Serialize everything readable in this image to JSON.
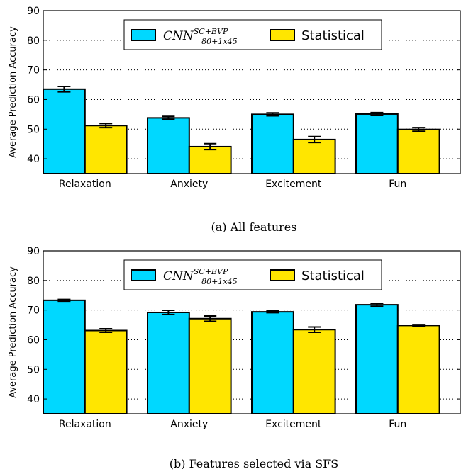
{
  "colors": {
    "cnn": "#00d8ff",
    "statistical": "#ffe600",
    "edge": "#000000"
  },
  "legend": {
    "cnn": {
      "base": "CNN",
      "sup": "SC+BVP",
      "sub": "80+1x45"
    },
    "statistical": "Statistical"
  },
  "chart_data": [
    {
      "type": "bar",
      "caption": "(a)  All features",
      "ylabel": "Average Prediction Accuracy",
      "ylim": [
        35,
        90
      ],
      "yticks": [
        40,
        50,
        60,
        70,
        80,
        90
      ],
      "grid": true,
      "legend_position": "top-center",
      "categories": [
        "Relaxation",
        "Anxiety",
        "Excitement",
        "Fun"
      ],
      "series": [
        {
          "key": "cnn",
          "values": [
            63.5,
            53.8,
            55.0,
            55.1
          ],
          "errors": [
            0.9,
            0.5,
            0.5,
            0.5
          ]
        },
        {
          "key": "statistical",
          "values": [
            51.2,
            44.1,
            46.5,
            49.9
          ],
          "errors": [
            0.7,
            1.0,
            1.0,
            0.6
          ]
        }
      ]
    },
    {
      "type": "bar",
      "caption": "(b)  Features selected via SFS",
      "ylabel": "Average Prediction Accuracy",
      "ylim": [
        35,
        90
      ],
      "yticks": [
        40,
        50,
        60,
        70,
        80,
        90
      ],
      "grid": true,
      "legend_position": "top-center",
      "categories": [
        "Relaxation",
        "Anxiety",
        "Excitement",
        "Fun"
      ],
      "series": [
        {
          "key": "cnn",
          "values": [
            73.3,
            69.2,
            69.4,
            71.8
          ],
          "errors": [
            0.3,
            0.7,
            0.3,
            0.5
          ]
        },
        {
          "key": "statistical",
          "values": [
            63.1,
            67.1,
            63.4,
            64.8
          ],
          "errors": [
            0.6,
            0.9,
            0.9,
            0.3
          ]
        }
      ]
    }
  ]
}
